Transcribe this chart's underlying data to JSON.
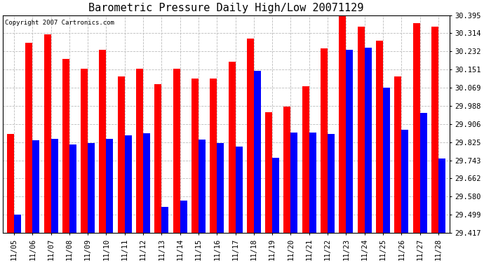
{
  "title": "Barometric Pressure Daily High/Low 20071129",
  "copyright": "Copyright 2007 Cartronics.com",
  "dates": [
    "11/05",
    "11/06",
    "11/07",
    "11/08",
    "11/09",
    "11/10",
    "11/11",
    "11/12",
    "11/13",
    "11/14",
    "11/15",
    "11/16",
    "11/17",
    "11/18",
    "11/19",
    "11/20",
    "11/21",
    "11/22",
    "11/23",
    "11/24",
    "11/25",
    "11/26",
    "11/27",
    "11/28"
  ],
  "highs": [
    29.86,
    30.27,
    30.31,
    30.2,
    30.155,
    30.24,
    30.12,
    30.155,
    30.085,
    30.155,
    30.11,
    30.11,
    30.185,
    30.29,
    29.96,
    29.985,
    30.075,
    30.245,
    30.39,
    30.345,
    30.28,
    30.12,
    30.36,
    30.345
  ],
  "lows": [
    29.499,
    29.832,
    29.84,
    29.815,
    29.82,
    29.84,
    29.855,
    29.865,
    29.535,
    29.562,
    29.835,
    29.82,
    29.805,
    30.145,
    29.755,
    29.868,
    29.868,
    29.862,
    30.24,
    30.248,
    30.07,
    29.88,
    29.955,
    29.75
  ],
  "bar_color_high": "#ff0000",
  "bar_color_low": "#0000ff",
  "background_color": "#ffffff",
  "plot_background": "#ffffff",
  "grid_color": "#bbbbbb",
  "ylim_min": 29.417,
  "ylim_max": 30.395,
  "yticks": [
    29.417,
    29.499,
    29.58,
    29.662,
    29.743,
    29.825,
    29.906,
    29.988,
    30.069,
    30.151,
    30.232,
    30.314,
    30.395
  ],
  "title_fontsize": 11,
  "tick_fontsize": 7.5,
  "copyright_fontsize": 6.5,
  "bar_width": 0.38
}
